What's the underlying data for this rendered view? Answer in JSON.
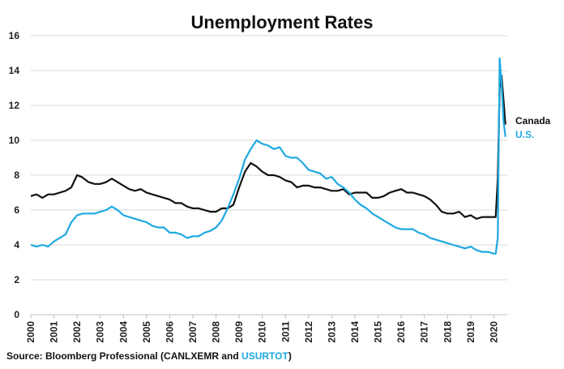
{
  "source": {
    "prefix": "Source: Bloomberg Professional  (CANLXEMR and ",
    "highlight": "USURTOT",
    "suffix": ")",
    "highlight_color": "#1fa9e0"
  },
  "chart_data": {
    "type": "line",
    "title": "Unemployment Rates",
    "xlabel": "",
    "ylabel": "",
    "xlim": [
      2000,
      2020.58
    ],
    "ylim": [
      0,
      16
    ],
    "y_ticks": [
      "0",
      "2",
      "4",
      "6",
      "8",
      "10",
      "12",
      "14",
      "16"
    ],
    "x_ticks": [
      "2000",
      "2001",
      "2002",
      "2003",
      "2004",
      "2005",
      "2006",
      "2007",
      "2008",
      "2009",
      "2010",
      "2011",
      "2012",
      "2013",
      "2014",
      "2015",
      "2016",
      "2017",
      "2018",
      "2019",
      "2020"
    ],
    "grid": true,
    "legend_placement": "right, at end of lines",
    "series": [
      {
        "name": "Canada",
        "color": "#111111",
        "points": [
          [
            2000.0,
            6.8
          ],
          [
            2000.25,
            6.9
          ],
          [
            2000.5,
            6.7
          ],
          [
            2000.75,
            6.9
          ],
          [
            2001.0,
            6.9
          ],
          [
            2001.25,
            7.0
          ],
          [
            2001.5,
            7.1
          ],
          [
            2001.75,
            7.3
          ],
          [
            2002.0,
            8.0
          ],
          [
            2002.2,
            7.9
          ],
          [
            2002.5,
            7.6
          ],
          [
            2002.75,
            7.5
          ],
          [
            2003.0,
            7.5
          ],
          [
            2003.25,
            7.6
          ],
          [
            2003.5,
            7.8
          ],
          [
            2003.75,
            7.6
          ],
          [
            2004.0,
            7.4
          ],
          [
            2004.25,
            7.2
          ],
          [
            2004.5,
            7.1
          ],
          [
            2004.75,
            7.2
          ],
          [
            2005.0,
            7.0
          ],
          [
            2005.25,
            6.9
          ],
          [
            2005.5,
            6.8
          ],
          [
            2005.75,
            6.7
          ],
          [
            2006.0,
            6.6
          ],
          [
            2006.25,
            6.4
          ],
          [
            2006.5,
            6.4
          ],
          [
            2006.75,
            6.2
          ],
          [
            2007.0,
            6.1
          ],
          [
            2007.25,
            6.1
          ],
          [
            2007.5,
            6.0
          ],
          [
            2007.75,
            5.9
          ],
          [
            2008.0,
            5.9
          ],
          [
            2008.25,
            6.1
          ],
          [
            2008.5,
            6.1
          ],
          [
            2008.75,
            6.3
          ],
          [
            2009.0,
            7.3
          ],
          [
            2009.25,
            8.2
          ],
          [
            2009.5,
            8.7
          ],
          [
            2009.75,
            8.5
          ],
          [
            2010.0,
            8.2
          ],
          [
            2010.25,
            8.0
          ],
          [
            2010.5,
            8.0
          ],
          [
            2010.75,
            7.9
          ],
          [
            2011.0,
            7.7
          ],
          [
            2011.25,
            7.6
          ],
          [
            2011.5,
            7.3
          ],
          [
            2011.75,
            7.4
          ],
          [
            2012.0,
            7.4
          ],
          [
            2012.25,
            7.3
          ],
          [
            2012.5,
            7.3
          ],
          [
            2012.75,
            7.2
          ],
          [
            2013.0,
            7.1
          ],
          [
            2013.25,
            7.1
          ],
          [
            2013.5,
            7.2
          ],
          [
            2013.75,
            6.9
          ],
          [
            2014.0,
            7.0
          ],
          [
            2014.25,
            7.0
          ],
          [
            2014.5,
            7.0
          ],
          [
            2014.75,
            6.7
          ],
          [
            2015.0,
            6.7
          ],
          [
            2015.25,
            6.8
          ],
          [
            2015.5,
            7.0
          ],
          [
            2015.75,
            7.1
          ],
          [
            2016.0,
            7.2
          ],
          [
            2016.25,
            7.0
          ],
          [
            2016.5,
            7.0
          ],
          [
            2016.75,
            6.9
          ],
          [
            2017.0,
            6.8
          ],
          [
            2017.25,
            6.6
          ],
          [
            2017.5,
            6.3
          ],
          [
            2017.75,
            5.9
          ],
          [
            2018.0,
            5.8
          ],
          [
            2018.25,
            5.8
          ],
          [
            2018.5,
            5.9
          ],
          [
            2018.75,
            5.6
          ],
          [
            2019.0,
            5.7
          ],
          [
            2019.25,
            5.5
          ],
          [
            2019.5,
            5.6
          ],
          [
            2019.75,
            5.6
          ],
          [
            2020.0,
            5.6
          ],
          [
            2020.08,
            5.6
          ],
          [
            2020.17,
            7.8
          ],
          [
            2020.25,
            13.0
          ],
          [
            2020.33,
            13.7
          ],
          [
            2020.42,
            12.3
          ],
          [
            2020.5,
            10.9
          ]
        ]
      },
      {
        "name": "U.S.",
        "color": "#1fa9e0",
        "points": [
          [
            2000.0,
            4.0
          ],
          [
            2000.25,
            3.9
          ],
          [
            2000.5,
            4.0
          ],
          [
            2000.75,
            3.9
          ],
          [
            2001.0,
            4.2
          ],
          [
            2001.25,
            4.4
          ],
          [
            2001.5,
            4.6
          ],
          [
            2001.75,
            5.3
          ],
          [
            2002.0,
            5.7
          ],
          [
            2002.25,
            5.8
          ],
          [
            2002.5,
            5.8
          ],
          [
            2002.75,
            5.8
          ],
          [
            2003.0,
            5.9
          ],
          [
            2003.25,
            6.0
          ],
          [
            2003.5,
            6.2
          ],
          [
            2003.75,
            6.0
          ],
          [
            2004.0,
            5.7
          ],
          [
            2004.25,
            5.6
          ],
          [
            2004.5,
            5.5
          ],
          [
            2004.75,
            5.4
          ],
          [
            2005.0,
            5.3
          ],
          [
            2005.25,
            5.1
          ],
          [
            2005.5,
            5.0
          ],
          [
            2005.75,
            5.0
          ],
          [
            2006.0,
            4.7
          ],
          [
            2006.25,
            4.7
          ],
          [
            2006.5,
            4.6
          ],
          [
            2006.75,
            4.4
          ],
          [
            2007.0,
            4.5
          ],
          [
            2007.25,
            4.5
          ],
          [
            2007.5,
            4.7
          ],
          [
            2007.75,
            4.8
          ],
          [
            2008.0,
            5.0
          ],
          [
            2008.25,
            5.4
          ],
          [
            2008.5,
            6.1
          ],
          [
            2008.75,
            6.9
          ],
          [
            2009.0,
            7.8
          ],
          [
            2009.25,
            8.9
          ],
          [
            2009.5,
            9.5
          ],
          [
            2009.75,
            10.0
          ],
          [
            2010.0,
            9.8
          ],
          [
            2010.25,
            9.7
          ],
          [
            2010.5,
            9.5
          ],
          [
            2010.75,
            9.6
          ],
          [
            2011.0,
            9.1
          ],
          [
            2011.25,
            9.0
          ],
          [
            2011.5,
            9.0
          ],
          [
            2011.75,
            8.7
          ],
          [
            2012.0,
            8.3
          ],
          [
            2012.25,
            8.2
          ],
          [
            2012.5,
            8.1
          ],
          [
            2012.75,
            7.8
          ],
          [
            2013.0,
            7.9
          ],
          [
            2013.25,
            7.5
          ],
          [
            2013.5,
            7.3
          ],
          [
            2013.75,
            7.0
          ],
          [
            2014.0,
            6.6
          ],
          [
            2014.25,
            6.3
          ],
          [
            2014.5,
            6.1
          ],
          [
            2014.75,
            5.8
          ],
          [
            2015.0,
            5.6
          ],
          [
            2015.25,
            5.4
          ],
          [
            2015.5,
            5.2
          ],
          [
            2015.75,
            5.0
          ],
          [
            2016.0,
            4.9
          ],
          [
            2016.25,
            4.9
          ],
          [
            2016.5,
            4.9
          ],
          [
            2016.75,
            4.7
          ],
          [
            2017.0,
            4.6
          ],
          [
            2017.25,
            4.4
          ],
          [
            2017.5,
            4.3
          ],
          [
            2017.75,
            4.2
          ],
          [
            2018.0,
            4.1
          ],
          [
            2018.25,
            4.0
          ],
          [
            2018.5,
            3.9
          ],
          [
            2018.75,
            3.8
          ],
          [
            2019.0,
            3.9
          ],
          [
            2019.25,
            3.7
          ],
          [
            2019.5,
            3.6
          ],
          [
            2019.75,
            3.6
          ],
          [
            2020.0,
            3.5
          ],
          [
            2020.08,
            3.5
          ],
          [
            2020.17,
            4.4
          ],
          [
            2020.25,
            14.7
          ],
          [
            2020.33,
            13.3
          ],
          [
            2020.42,
            11.1
          ],
          [
            2020.5,
            10.2
          ]
        ]
      }
    ]
  }
}
